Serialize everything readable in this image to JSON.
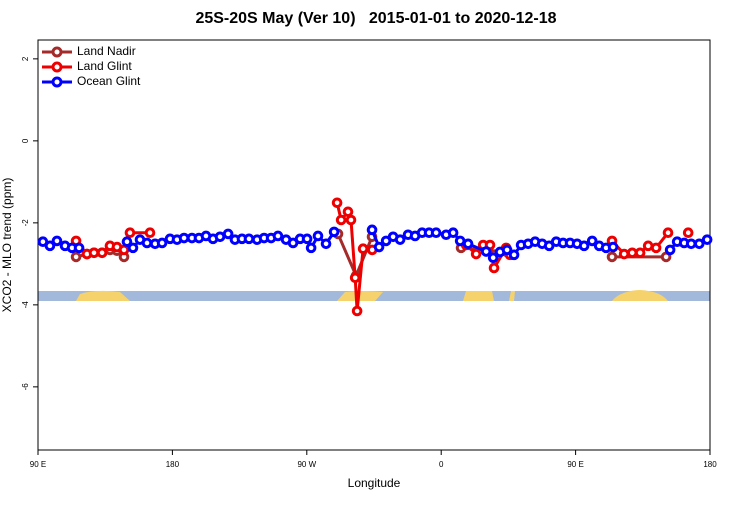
{
  "chart_data": {
    "type": "line",
    "title": "25S-20S May (Ver 10)   2015-01-01 to 2020-12-18",
    "x_label": "Longitude",
    "y_label": "XCO2 - MLO trend (ppm)",
    "xlim": [
      90,
      540
    ],
    "ylim": [
      -7.54,
      2.46
    ],
    "xticks": [
      {
        "value": 90,
        "label": "90 E"
      },
      180,
      {
        "value": 270,
        "label": "90 W"
      },
      {
        "value": 360,
        "label": "0"
      },
      {
        "value": 450,
        "label": "90 E"
      },
      {
        "value": 540,
        "label": "180"
      }
    ],
    "yticks": [
      2,
      0,
      -2,
      -4,
      -6
    ],
    "legend": "top-left",
    "series": [
      {
        "name": "Land Nadir",
        "color": "#a52a2a",
        "x": [
          115.5,
          122.8,
          127.5,
          132.9,
          138.2,
          142.9,
          147.6,
          null,
          290.9,
          303.0,
          313.7,
          null,
          373.3,
          404.1,
          null,
          474.4,
          510.6
        ],
        "values": [
          -2.83,
          -2.76,
          -2.73,
          -2.73,
          -2.66,
          -2.68,
          -2.83,
          null,
          -2.27,
          -3.29,
          -2.34,
          null,
          -2.61,
          -2.71,
          null,
          -2.83,
          -2.83
        ]
      },
      {
        "name": "Land Glint",
        "color": "#ee0000",
        "x": [
          115.5,
          122.8,
          127.5,
          132.9,
          138.2,
          142.9,
          147.6,
          null,
          151.6,
          165.0,
          null,
          290.3,
          293.0,
          297.6,
          299.6,
          302.4,
          303.7,
          307.7,
          313.8,
          null,
          376.7,
          383.4,
          388.1,
          392.7,
          395.4,
          403.5,
          406.1,
          null,
          474.4,
          482.5,
          487.9,
          493.2,
          498.6,
          503.9,
          511.9,
          null,
          525.4
        ],
        "values": [
          -2.44,
          -2.76,
          -2.73,
          -2.73,
          -2.56,
          -2.59,
          -2.66,
          null,
          -2.24,
          -2.24,
          null,
          -1.51,
          -1.93,
          -1.73,
          -1.93,
          -3.34,
          -4.15,
          -2.63,
          -2.66,
          null,
          -2.54,
          -2.76,
          -2.54,
          -2.54,
          -3.1,
          -2.61,
          -2.78,
          null,
          -2.44,
          -2.76,
          -2.73,
          -2.73,
          -2.56,
          -2.61,
          -2.24,
          null,
          -2.24
        ]
      },
      {
        "name": "Ocean Glint",
        "color": "#0000ff",
        "x": [
          93.3,
          98.0,
          102.7,
          108.1,
          112.8,
          117.5,
          null,
          149.6,
          153.6,
          158.3,
          163.0,
          168.4,
          173.1,
          178.4,
          183.1,
          187.8,
          193.1,
          197.8,
          202.5,
          207.2,
          211.9,
          217.3,
          221.9,
          226.6,
          231.3,
          236.7,
          241.4,
          246.1,
          250.7,
          256.1,
          260.8,
          265.5,
          270.2,
          272.9,
          277.5,
          282.9,
          288.3,
          null,
          313.7,
          318.4,
          323.1,
          327.8,
          332.5,
          337.8,
          342.5,
          347.2,
          351.9,
          356.6,
          363.3,
          368.0,
          372.7,
          378.0,
          390.1,
          394.8,
          399.4,
          404.1,
          408.8,
          413.5,
          418.2,
          422.9,
          427.6,
          432.3,
          437.0,
          441.6,
          446.3,
          451.0,
          455.7,
          461.1,
          465.8,
          470.4,
          475.1,
          null,
          513.3,
          518.0,
          522.7,
          527.4,
          532.8,
          538.1
        ],
        "values": [
          -2.46,
          -2.56,
          -2.44,
          -2.56,
          -2.61,
          -2.61,
          null,
          -2.46,
          -2.61,
          -2.41,
          -2.49,
          -2.51,
          -2.49,
          -2.39,
          -2.41,
          -2.37,
          -2.37,
          -2.37,
          -2.32,
          -2.39,
          -2.34,
          -2.27,
          -2.41,
          -2.39,
          -2.39,
          -2.41,
          -2.37,
          -2.37,
          -2.32,
          -2.41,
          -2.49,
          -2.39,
          -2.39,
          -2.61,
          -2.32,
          -2.51,
          -2.22,
          null,
          -2.17,
          -2.59,
          -2.44,
          -2.34,
          -2.41,
          -2.29,
          -2.32,
          -2.24,
          -2.24,
          -2.24,
          -2.29,
          -2.24,
          -2.44,
          -2.51,
          -2.7,
          -2.85,
          -2.71,
          -2.66,
          -2.78,
          -2.54,
          -2.51,
          -2.46,
          -2.51,
          -2.56,
          -2.46,
          -2.49,
          -2.49,
          -2.51,
          -2.56,
          -2.44,
          -2.56,
          -2.61,
          -2.59,
          null,
          -2.66,
          -2.46,
          -2.49,
          -2.51,
          -2.51,
          -2.41
        ]
      }
    ]
  }
}
